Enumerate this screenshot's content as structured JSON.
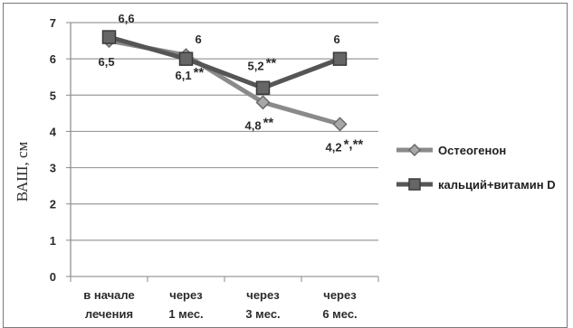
{
  "chart_data": {
    "type": "line",
    "ylabel": "ВАШ, см",
    "ylim": [
      0,
      7
    ],
    "yticks": [
      "0",
      "1",
      "2",
      "3",
      "4",
      "5",
      "6",
      "7"
    ],
    "grid": true,
    "legend_position": "right",
    "categories": [
      [
        "в начале",
        "лечения"
      ],
      [
        "через",
        "1 мес."
      ],
      [
        "через",
        "3 мес."
      ],
      [
        "через",
        "6 мес."
      ]
    ],
    "series": [
      {
        "name": "Остеогенон",
        "marker": "diamond",
        "color": "#8a8a8a",
        "values": [
          6.5,
          6.1,
          4.8,
          4.2
        ],
        "labels": [
          {
            "text": "6,5",
            "stars": ""
          },
          {
            "text": "6,1",
            "stars": "**"
          },
          {
            "text": "4,8",
            "stars": "**"
          },
          {
            "text": "4,2",
            "stars": "*,**"
          }
        ]
      },
      {
        "name": "кальций+витамин D",
        "marker": "square",
        "color": "#555555",
        "values": [
          6.6,
          6.0,
          5.2,
          6.0
        ],
        "labels": [
          {
            "text": "6,6",
            "stars": ""
          },
          {
            "text": "6",
            "stars": ""
          },
          {
            "text": "5,2",
            "stars": "**"
          },
          {
            "text": "6",
            "stars": ""
          }
        ]
      }
    ]
  }
}
